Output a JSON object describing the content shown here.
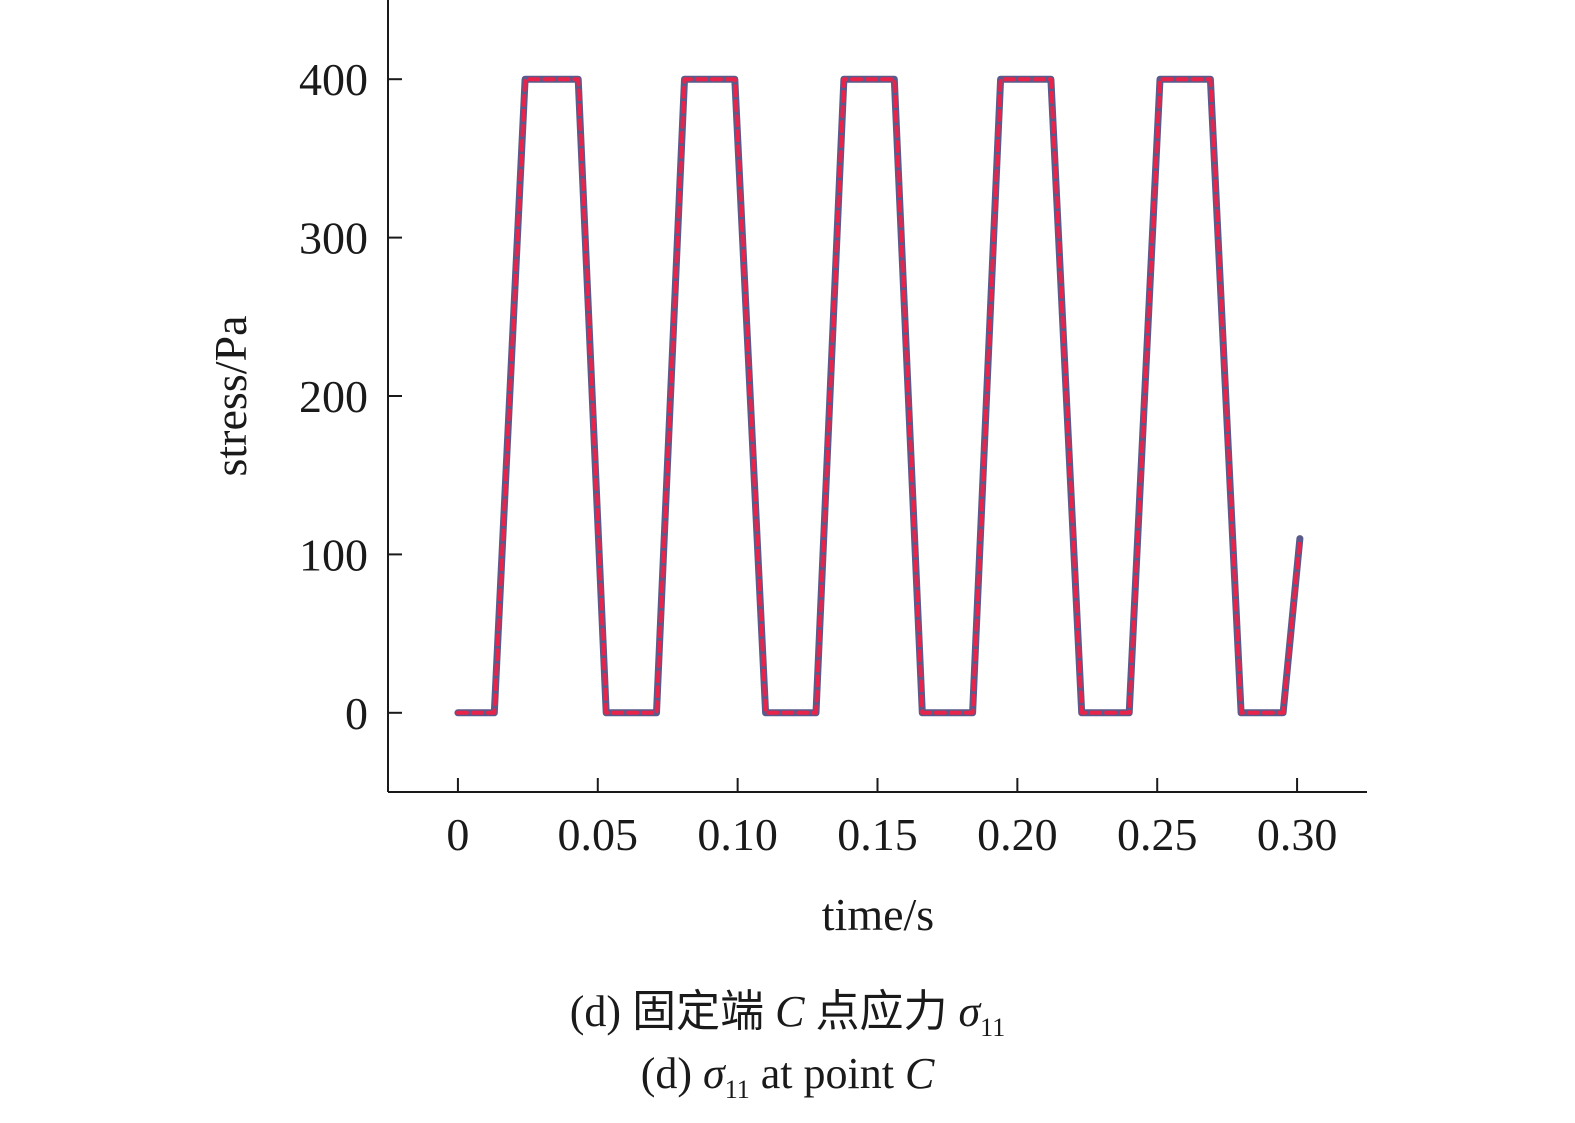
{
  "chart_data": {
    "type": "line",
    "xlabel": "time/s",
    "ylabel": "stress/Pa",
    "xlim": [
      -0.025,
      0.325
    ],
    "ylim": [
      -50,
      450
    ],
    "xticks": [
      {
        "value": 0,
        "label": "0"
      },
      {
        "value": 0.05,
        "label": "0.05"
      },
      {
        "value": 0.1,
        "label": "0.10"
      },
      {
        "value": 0.15,
        "label": "0.15"
      },
      {
        "value": 0.2,
        "label": "0.20"
      },
      {
        "value": 0.25,
        "label": "0.25"
      },
      {
        "value": 0.3,
        "label": "0.30"
      }
    ],
    "yticks": [
      {
        "value": 0,
        "label": "0"
      },
      {
        "value": 100,
        "label": "100"
      },
      {
        "value": 200,
        "label": "200"
      },
      {
        "value": 300,
        "label": "300"
      },
      {
        "value": 400,
        "label": "400"
      }
    ],
    "series": [
      {
        "color": "#5a5a8c",
        "style": "solid",
        "x": [
          0,
          0.013,
          0.024,
          0.043,
          0.053,
          0.071,
          0.081,
          0.099,
          0.11,
          0.128,
          0.138,
          0.156,
          0.166,
          0.184,
          0.194,
          0.212,
          0.223,
          0.24,
          0.251,
          0.269,
          0.28,
          0.295,
          0.301
        ],
        "y": [
          0,
          0,
          400,
          400,
          0,
          0,
          400,
          400,
          0,
          0,
          400,
          400,
          0,
          0,
          400,
          400,
          0,
          0,
          400,
          400,
          0,
          0,
          110
        ]
      },
      {
        "color": "#e8244a",
        "style": "dashed",
        "x": [
          0,
          0.013,
          0.024,
          0.043,
          0.053,
          0.071,
          0.081,
          0.099,
          0.11,
          0.128,
          0.138,
          0.156,
          0.166,
          0.184,
          0.194,
          0.212,
          0.223,
          0.24,
          0.251,
          0.269,
          0.28,
          0.295,
          0.301
        ],
        "y": [
          0,
          0,
          400,
          400,
          0,
          0,
          400,
          400,
          0,
          0,
          400,
          400,
          0,
          0,
          400,
          400,
          0,
          0,
          400,
          400,
          0,
          0,
          110
        ]
      }
    ]
  },
  "caption": {
    "line1_prefix": "(d) 固定端 ",
    "line1_point": "C",
    "line1_mid": " 点应力 ",
    "line1_sigma": "σ",
    "line1_sub": "11",
    "line2_prefix": "(d) ",
    "line2_sigma": "σ",
    "line2_sub": "11",
    "line2_mid": " at point ",
    "line2_point": "C"
  }
}
